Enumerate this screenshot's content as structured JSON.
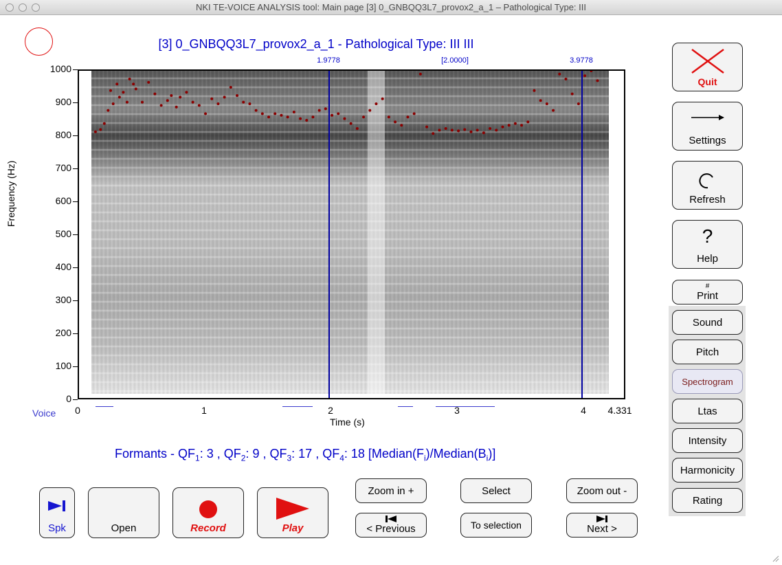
{
  "window": {
    "title": "NKI TE-VOICE ANALYSIS tool: Main page [3] 0_GNBQQ3L7_provox2_a_1 – Pathological Type: III"
  },
  "plot": {
    "title": "[3] 0_GNBQQ3L7_provox2_a_1 - Pathological Type: III  III",
    "ylabel": "Frequency (Hz)",
    "xlabel": "Time (s)",
    "voice_label": "Voice",
    "cursor_left_label": "1.9778",
    "cursor_mid_label": "[2.0000]",
    "cursor_right_label": "3.9778",
    "yticks": [
      "0",
      "100",
      "200",
      "300",
      "400",
      "500",
      "600",
      "700",
      "800",
      "900",
      "1000"
    ],
    "xticks": [
      "0",
      "1",
      "2",
      "3",
      "4",
      "4.331"
    ]
  },
  "chart_data": {
    "type": "scatter",
    "title": "[3] 0_GNBQQ3L7_provox2_a_1 - Pathological Type: III  III",
    "xlabel": "Time (s)",
    "ylabel": "Frequency (Hz)",
    "xlim": [
      0,
      4.331
    ],
    "ylim": [
      0,
      1000
    ],
    "grid": false,
    "cursors": [
      1.9778,
      3.9778
    ],
    "voiced_segments": [
      [
        0.14,
        0.28
      ],
      [
        1.62,
        1.86
      ],
      [
        2.53,
        2.65
      ],
      [
        2.83,
        3.3
      ]
    ],
    "series": [
      {
        "x": [
          0.13,
          0.17,
          0.2,
          0.23,
          0.25,
          0.27,
          0.3,
          0.32,
          0.35,
          0.38,
          0.4,
          0.43,
          0.45,
          0.5,
          0.55,
          0.6,
          0.65,
          0.7,
          0.73,
          0.77,
          0.8,
          0.85,
          0.9,
          0.95,
          1.0,
          1.05,
          1.1,
          1.15,
          1.2,
          1.25,
          1.3,
          1.35,
          1.4,
          1.45,
          1.5,
          1.55,
          1.6,
          1.65,
          1.7,
          1.75,
          1.8,
          1.85,
          1.9,
          1.95,
          2.0,
          2.05,
          2.1,
          2.15,
          2.2,
          2.25,
          2.3,
          2.35,
          2.4,
          2.45,
          2.5,
          2.55,
          2.6,
          2.65,
          2.7,
          2.75,
          2.8,
          2.85,
          2.9,
          2.95,
          3.0,
          3.05,
          3.1,
          3.15,
          3.2,
          3.25,
          3.3,
          3.35,
          3.4,
          3.45,
          3.5,
          3.55,
          3.6,
          3.65,
          3.7,
          3.75,
          3.8,
          3.85,
          3.9,
          3.95,
          4.0,
          4.05,
          4.1
        ],
        "y": [
          815,
          822,
          840,
          880,
          940,
          900,
          960,
          920,
          935,
          905,
          975,
          960,
          945,
          905,
          965,
          930,
          895,
          910,
          925,
          890,
          920,
          935,
          905,
          895,
          870,
          915,
          900,
          920,
          950,
          925,
          905,
          900,
          880,
          870,
          860,
          870,
          865,
          860,
          875,
          855,
          850,
          860,
          880,
          885,
          865,
          870,
          855,
          840,
          825,
          860,
          880,
          900,
          915,
          860,
          845,
          835,
          860,
          870,
          990,
          830,
          810,
          820,
          825,
          820,
          818,
          822,
          815,
          820,
          812,
          825,
          820,
          830,
          835,
          840,
          835,
          845,
          940,
          910,
          900,
          880,
          990,
          975,
          930,
          900,
          985,
          1000,
          970
        ]
      }
    ]
  },
  "formants": {
    "prefix": "Formants - QF",
    "qf1": "3",
    "qf2": "9",
    "qf3": "17",
    "qf4": "18",
    "median_f": "i",
    "median_b": "i"
  },
  "bottom_buttons": {
    "spk": "Spk",
    "open": "Open",
    "record": "Record",
    "play": "Play",
    "zoom_in": "Zoom in +",
    "select": "Select",
    "zoom_out": "Zoom out -",
    "previous": "< Previous",
    "to_selection": "To selection",
    "next": "Next >"
  },
  "side_buttons": {
    "quit": "Quit",
    "settings": "Settings",
    "refresh": "Refresh",
    "help": "Help",
    "print": "Print",
    "print_hint": "#",
    "sound": "Sound",
    "pitch": "Pitch",
    "spectrogram": "Spectrogram",
    "ltas": "Ltas",
    "intensity": "Intensity",
    "harmonicity": "Harmonicity",
    "rating": "Rating"
  },
  "colors": {
    "accent_blue": "#0000c8",
    "red": "#e01010",
    "dots": "#8b0000"
  }
}
